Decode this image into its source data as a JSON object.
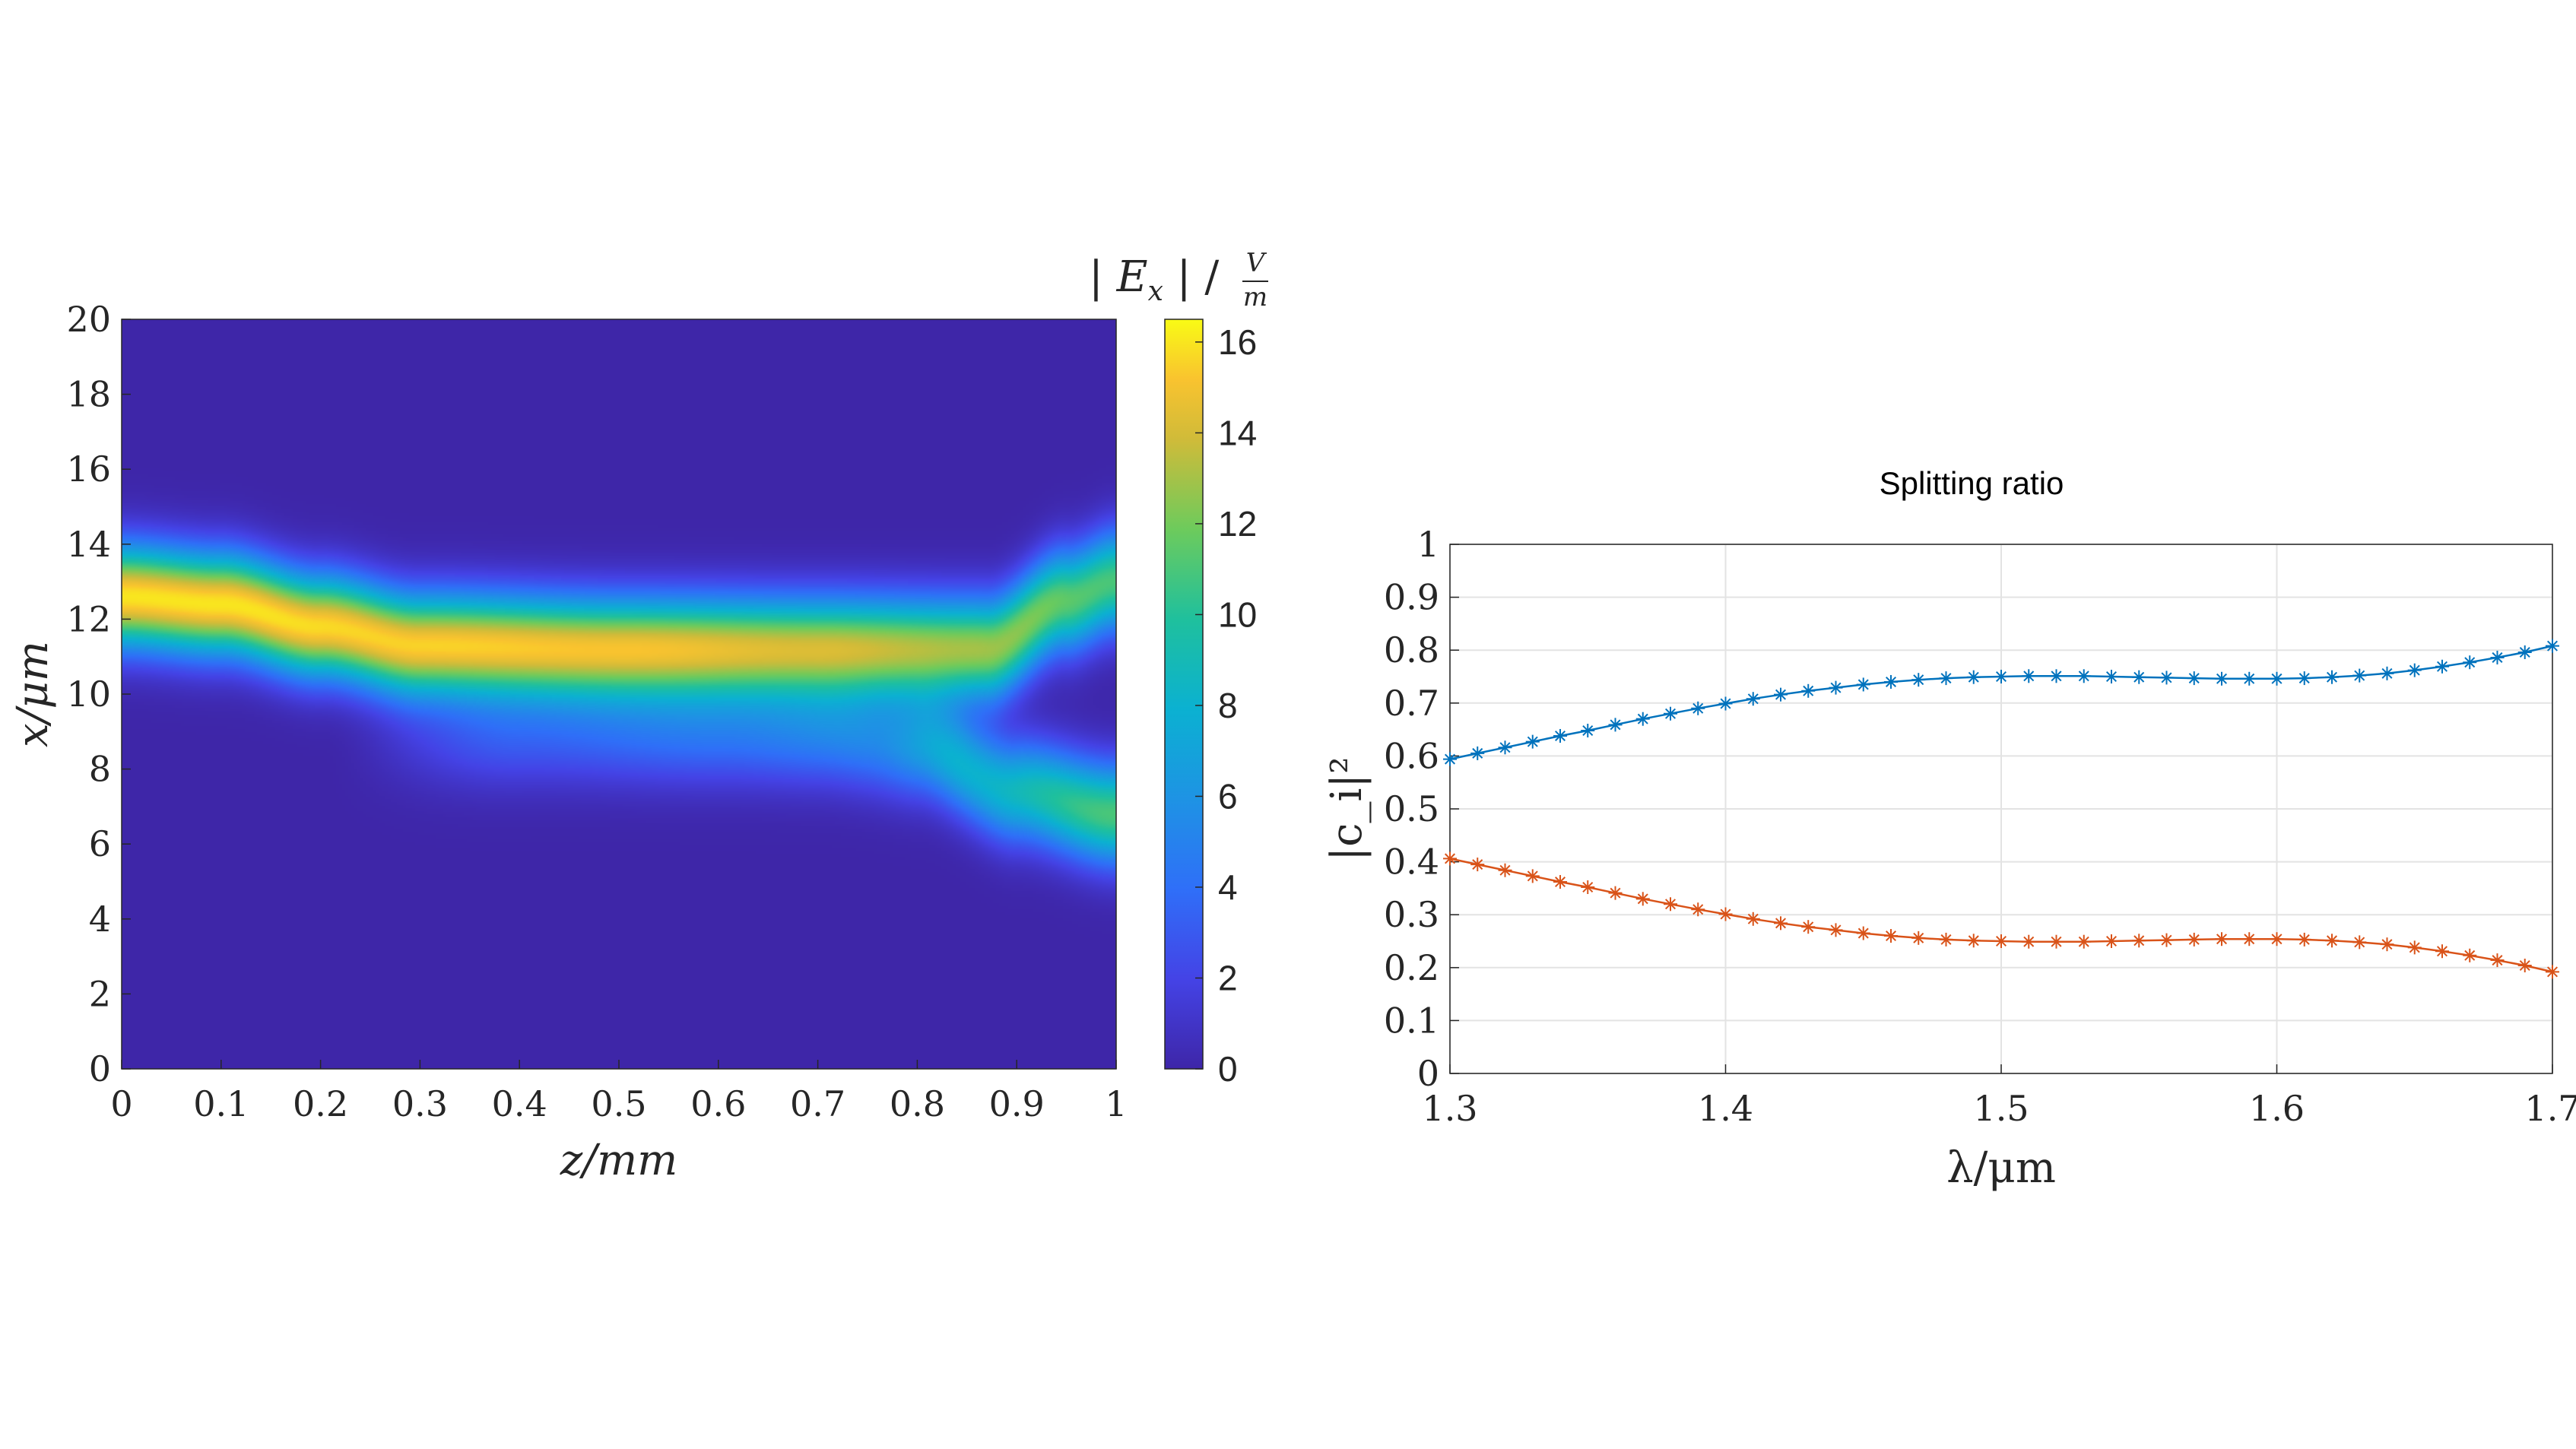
{
  "chart_data": [
    {
      "type": "heatmap",
      "title": "",
      "xlabel": "z/mm",
      "ylabel": "x/μm",
      "colorbar_label": "| E_x | / V/m",
      "xlim": [
        0,
        1
      ],
      "ylim": [
        0,
        20
      ],
      "xticks": [
        "0",
        "0.1",
        "0.2",
        "0.3",
        "0.4",
        "0.5",
        "0.6",
        "0.7",
        "0.8",
        "0.9",
        "1"
      ],
      "yticks": [
        "0",
        "2",
        "4",
        "6",
        "8",
        "10",
        "12",
        "14",
        "16",
        "18",
        "20"
      ],
      "colorbar_range": [
        0,
        16.5
      ],
      "colorbar_ticks": [
        "0",
        "2",
        "4",
        "6",
        "8",
        "10",
        "12",
        "14",
        "16"
      ],
      "colormap": "parula",
      "colors": {
        "low": "#3e26a8",
        "high": "#f9fb15"
      },
      "description_modes": {
        "upper_mode_center_x": [
          [
            0,
            12.6
          ],
          [
            0.1,
            12.4
          ],
          [
            0.2,
            11.8
          ],
          [
            0.3,
            11.3
          ],
          [
            0.5,
            11.2
          ],
          [
            0.7,
            11.2
          ],
          [
            0.87,
            11.2
          ],
          [
            0.95,
            12.5
          ],
          [
            1.0,
            13.0
          ]
        ],
        "upper_mode_peak": [
          [
            0,
            16
          ],
          [
            0.1,
            16
          ],
          [
            0.3,
            15.5
          ],
          [
            0.5,
            15
          ],
          [
            0.7,
            14
          ],
          [
            0.85,
            13
          ],
          [
            1.0,
            11
          ]
        ],
        "lower_mode_center_x": [
          [
            0.25,
            8.8
          ],
          [
            0.5,
            8.9
          ],
          [
            0.7,
            8.9
          ],
          [
            0.8,
            8.6
          ],
          [
            0.9,
            7.4
          ],
          [
            1.0,
            6.8
          ]
        ],
        "lower_mode_peak": [
          [
            0.2,
            0
          ],
          [
            0.4,
            3
          ],
          [
            0.6,
            4
          ],
          [
            0.75,
            5
          ],
          [
            0.85,
            8
          ],
          [
            1.0,
            11
          ]
        ]
      }
    },
    {
      "type": "line",
      "title": "Splitting ratio",
      "xlabel": "λ/μm",
      "ylabel": "|c_i|²",
      "xlim": [
        1.3,
        1.7
      ],
      "ylim": [
        0,
        1
      ],
      "grid": true,
      "xticks": [
        "1.3",
        "1.4",
        "1.5",
        "1.6",
        "1.7"
      ],
      "yticks": [
        "0",
        "0.1",
        "0.2",
        "0.3",
        "0.4",
        "0.5",
        "0.6",
        "0.7",
        "0.8",
        "0.9",
        "1"
      ],
      "x": [
        1.3,
        1.31,
        1.32,
        1.33,
        1.34,
        1.35,
        1.36,
        1.37,
        1.38,
        1.39,
        1.4,
        1.41,
        1.42,
        1.43,
        1.44,
        1.45,
        1.46,
        1.47,
        1.48,
        1.49,
        1.5,
        1.51,
        1.52,
        1.53,
        1.54,
        1.55,
        1.56,
        1.57,
        1.58,
        1.59,
        1.6,
        1.61,
        1.62,
        1.63,
        1.64,
        1.65,
        1.66,
        1.67,
        1.68,
        1.69,
        1.7
      ],
      "series": [
        {
          "color": "#0072bd",
          "marker": "asterisk",
          "values": [
            0.594,
            0.605,
            0.616,
            0.627,
            0.638,
            0.648,
            0.659,
            0.67,
            0.68,
            0.69,
            0.699,
            0.708,
            0.716,
            0.723,
            0.729,
            0.735,
            0.74,
            0.744,
            0.747,
            0.749,
            0.75,
            0.751,
            0.751,
            0.751,
            0.75,
            0.749,
            0.748,
            0.747,
            0.746,
            0.746,
            0.746,
            0.747,
            0.749,
            0.752,
            0.756,
            0.762,
            0.769,
            0.777,
            0.786,
            0.796,
            0.808
          ]
        },
        {
          "color": "#d95319",
          "marker": "asterisk",
          "values": [
            0.406,
            0.395,
            0.384,
            0.373,
            0.362,
            0.352,
            0.341,
            0.33,
            0.32,
            0.31,
            0.301,
            0.292,
            0.284,
            0.277,
            0.271,
            0.265,
            0.26,
            0.256,
            0.253,
            0.251,
            0.25,
            0.249,
            0.249,
            0.249,
            0.25,
            0.251,
            0.252,
            0.253,
            0.254,
            0.254,
            0.254,
            0.253,
            0.251,
            0.248,
            0.244,
            0.238,
            0.231,
            0.223,
            0.214,
            0.204,
            0.192
          ]
        }
      ]
    }
  ]
}
